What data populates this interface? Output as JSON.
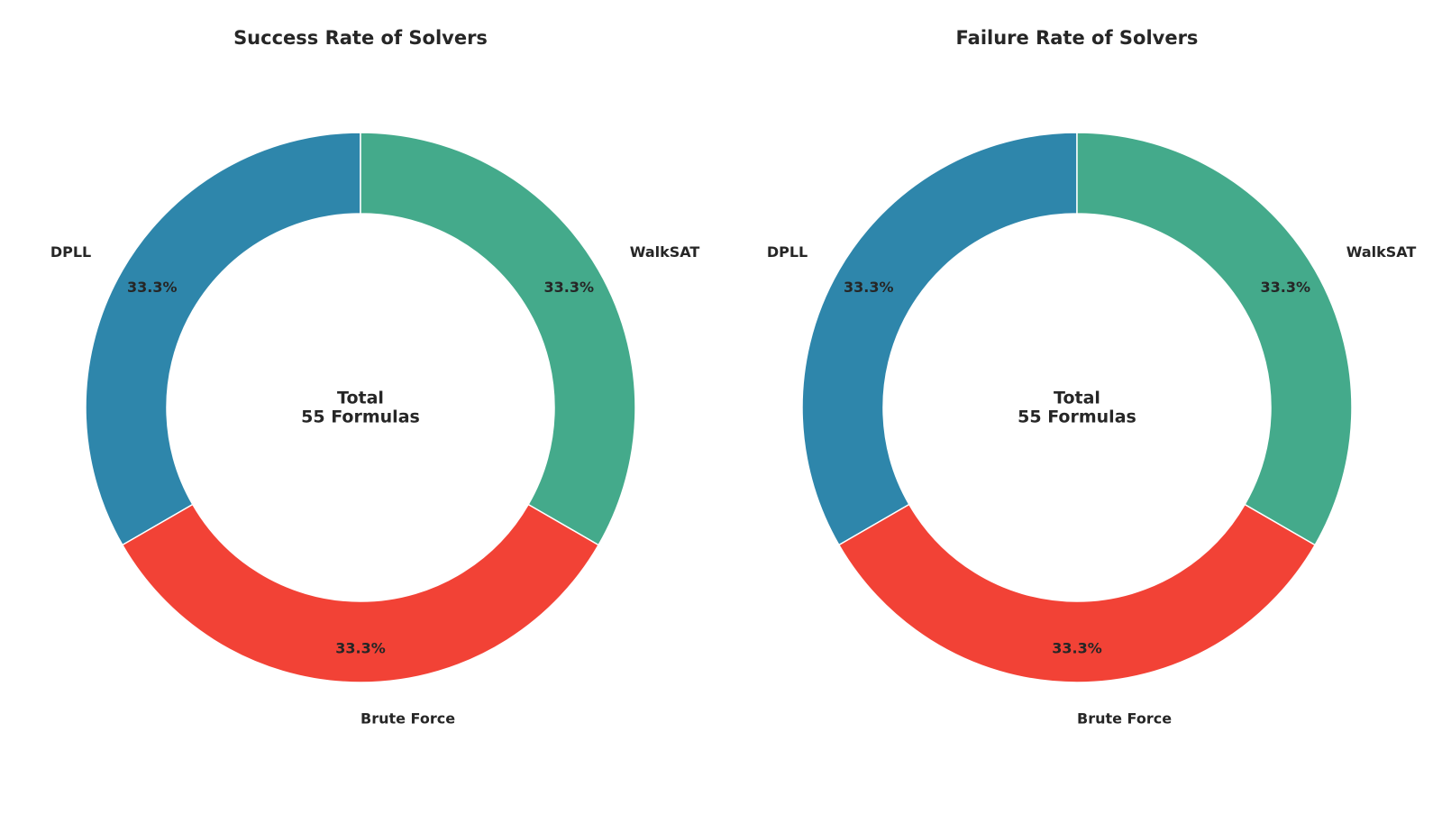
{
  "chart_data": [
    {
      "type": "pie",
      "donut": true,
      "title": "Success Rate of Solvers",
      "categories": [
        "DPLL",
        "Brute Force",
        "WalkSAT"
      ],
      "values": [
        33.3,
        33.3,
        33.3
      ],
      "percent_labels": [
        "33.3%",
        "33.3%",
        "33.3%"
      ],
      "colors": [
        "#2e86ab",
        "#f24236",
        "#44aa8b"
      ],
      "center_text": [
        "Total",
        "55 Formulas"
      ],
      "start_angle": 90,
      "direction": "counterclockwise"
    },
    {
      "type": "pie",
      "donut": true,
      "title": "Failure Rate of Solvers",
      "categories": [
        "DPLL",
        "Brute Force",
        "WalkSAT"
      ],
      "values": [
        33.3,
        33.3,
        33.3
      ],
      "percent_labels": [
        "33.3%",
        "33.3%",
        "33.3%"
      ],
      "colors": [
        "#2e86ab",
        "#f24236",
        "#44aa8b"
      ],
      "center_text": [
        "Total",
        "55 Formulas"
      ],
      "start_angle": 90,
      "direction": "counterclockwise"
    }
  ]
}
